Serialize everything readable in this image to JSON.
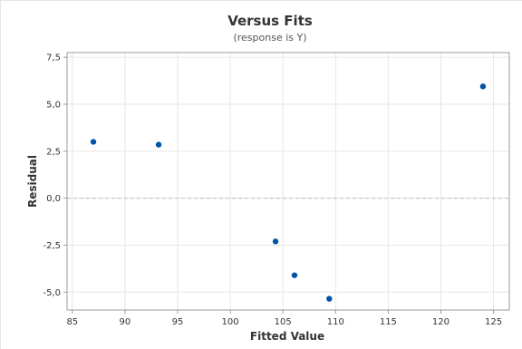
{
  "chart_data": {
    "type": "scatter",
    "title": "Versus Fits",
    "subtitle": "(response is Y)",
    "xlabel": "Fitted Value",
    "ylabel": "Residual",
    "xlim": [
      84.5,
      126.5
    ],
    "ylim": [
      -5.95,
      7.75
    ],
    "xticks": [
      85,
      90,
      95,
      100,
      105,
      110,
      115,
      120,
      125
    ],
    "xtick_labels": [
      "85",
      "90",
      "95",
      "100",
      "105",
      "110",
      "115",
      "120",
      "125"
    ],
    "yticks": [
      7.5,
      5.0,
      2.5,
      0.0,
      -2.5,
      -5.0
    ],
    "ytick_labels": [
      "7,5",
      "5,0",
      "2,5",
      "0,0",
      "-2,5",
      "-5,0"
    ],
    "grid": true,
    "reference_line": {
      "y": 0,
      "style": "dashed"
    },
    "points": [
      {
        "x": 87.0,
        "y": 3.0
      },
      {
        "x": 93.2,
        "y": 2.85
      },
      {
        "x": 104.3,
        "y": -2.3
      },
      {
        "x": 106.1,
        "y": -4.1
      },
      {
        "x": 109.4,
        "y": -5.35
      },
      {
        "x": 124.0,
        "y": 5.95
      }
    ],
    "colors": {
      "point": "#0054a6",
      "grid": "#e6e6e6",
      "frame": "#9b9b9b",
      "reference": "#bdbdbd"
    }
  }
}
